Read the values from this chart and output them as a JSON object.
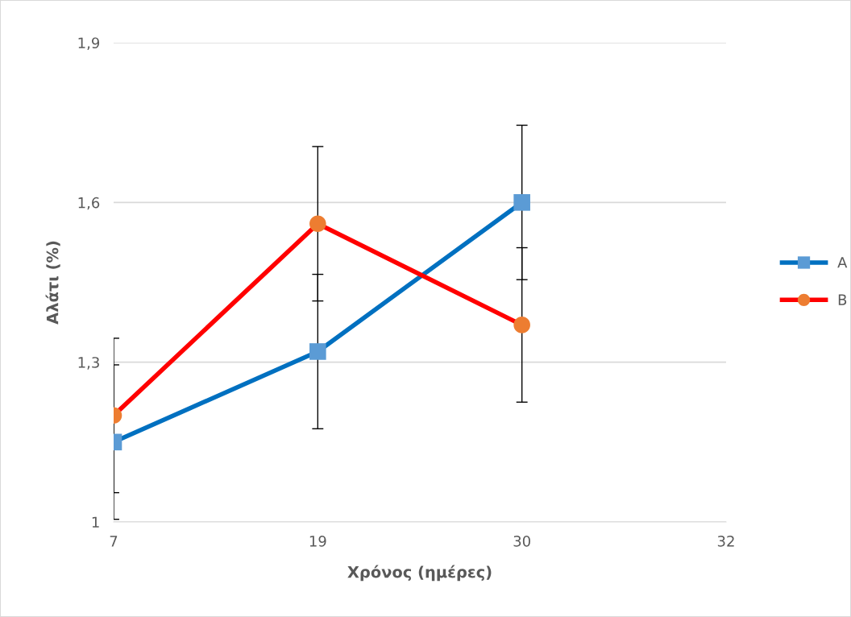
{
  "chart_data": {
    "type": "line",
    "xlabel": "Χρόνος (ημέρες)",
    "ylabel": "Αλάτι (%)",
    "categories": [
      "7",
      "19",
      "30",
      "32"
    ],
    "series": [
      {
        "name": "A",
        "color": "#0070c0",
        "colors": [
          "#5b9bd5",
          "#5b9bd5",
          "#5b9bd5",
          null
        ],
        "marker": "square",
        "values": [
          1.15,
          1.32,
          1.6,
          null
        ],
        "errors": [
          0.145,
          0.145,
          0.145,
          null
        ]
      },
      {
        "name": "B",
        "color": "#ff0000",
        "colors": [
          "#ed7d31",
          "#ed7d31",
          "#ed7d31",
          null
        ],
        "marker": "circle",
        "values": [
          1.2,
          1.56,
          1.37,
          null
        ],
        "errors": [
          0.145,
          0.145,
          0.145,
          null
        ]
      }
    ],
    "ylim": [
      1,
      1.9
    ],
    "yticks": [
      {
        "value": 1,
        "label": "1"
      },
      {
        "value": 1.3,
        "label": "1,3"
      },
      {
        "value": 1.6,
        "label": "1,6"
      },
      {
        "value": 1.9,
        "label": "1,9"
      }
    ],
    "grid": "y",
    "legend": "right",
    "line_style": "solid"
  }
}
